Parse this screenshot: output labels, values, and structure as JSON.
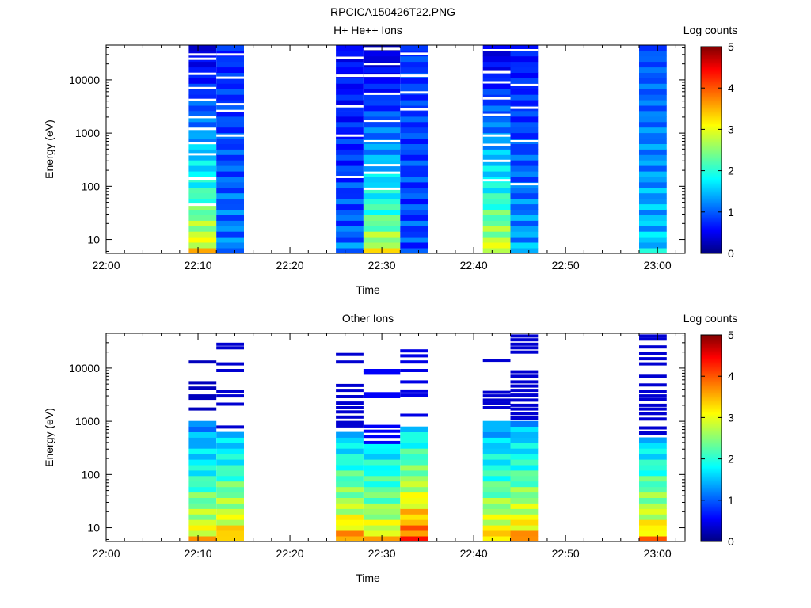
{
  "page": {
    "title": "RPCICA150426T22.PNG"
  },
  "chart_data": [
    {
      "type": "heatmap",
      "title": "H+ He++ Ions",
      "xlabel": "Time",
      "ylabel": "Energy (eV)",
      "colorbar_label": "Log counts",
      "x_ticks": [
        "22:00",
        "22:10",
        "22:20",
        "22:30",
        "22:40",
        "22:50",
        "23:00"
      ],
      "x_range": [
        "22:00",
        "23:03"
      ],
      "y_ticks": [
        10,
        100,
        1000,
        10000
      ],
      "y_scale": "log",
      "y_range": [
        5.5,
        45000
      ],
      "colorbar_ticks": [
        0,
        1,
        2,
        3,
        4,
        5
      ],
      "z_range": [
        0,
        5
      ],
      "colormap": "jet",
      "columns": [
        {
          "start": "22:09",
          "end": "22:12",
          "low_level": 3.3,
          "high_level": 0.4,
          "gaps": [
            13000,
            4200,
            1200,
            650,
            140,
            45,
            400,
            2000,
            7000,
            25000,
            30000
          ]
        },
        {
          "start": "22:12",
          "end": "22:15",
          "low_level": 1.3,
          "high_level": 0.8,
          "gaps": [
            11000,
            2600,
            900,
            3500,
            30000
          ]
        },
        {
          "start": "22:25",
          "end": "22:28",
          "low_level": 1.2,
          "high_level": 0.6,
          "gaps": [
            26000,
            3200,
            900,
            150,
            12000
          ]
        },
        {
          "start": "22:28",
          "end": "22:32",
          "low_level": 3.0,
          "high_level": 0.3,
          "gaps": [
            38000,
            12000,
            5500,
            1700,
            700,
            180,
            90,
            250,
            20000
          ]
        },
        {
          "start": "22:32",
          "end": "22:35",
          "low_level": 1.0,
          "high_level": 0.9,
          "gaps": [
            31000,
            12000,
            5800,
            2800
          ]
        },
        {
          "start": "22:41",
          "end": "22:44",
          "low_level": 3.1,
          "high_level": 0.4,
          "gaps": [
            36000,
            14000,
            4500,
            900,
            300,
            130,
            600,
            2200,
            9000
          ]
        },
        {
          "start": "22:44",
          "end": "22:47",
          "low_level": 1.5,
          "high_level": 0.7,
          "gaps": [
            36000,
            3000,
            700,
            110,
            8000
          ]
        },
        {
          "start": "22:58",
          "end": "23:01",
          "low_level": 1.7,
          "high_level": 1.0,
          "gaps": []
        }
      ]
    },
    {
      "type": "heatmap",
      "title": "Other Ions",
      "xlabel": "Time",
      "ylabel": "Energy (eV)",
      "colorbar_label": "Log counts",
      "x_ticks": [
        "22:00",
        "22:10",
        "22:20",
        "22:30",
        "22:40",
        "22:50",
        "23:00"
      ],
      "x_range": [
        "22:00",
        "23:03"
      ],
      "y_ticks": [
        10,
        100,
        1000,
        10000
      ],
      "y_scale": "log",
      "y_range": [
        5.5,
        45000
      ],
      "colorbar_ticks": [
        0,
        1,
        2,
        3,
        4,
        5
      ],
      "z_range": [
        0,
        5
      ],
      "colormap": "jet",
      "columns": [
        {
          "start": "22:09",
          "end": "22:12",
          "low_level": 3.4,
          "high_level": 0.2,
          "top": 14000,
          "dense_top": 800,
          "bands": [
            13000,
            5300,
            4200,
            3000,
            2700,
            1700
          ]
        },
        {
          "start": "22:12",
          "end": "22:15",
          "low_level": 3.6,
          "high_level": 0.3,
          "top": 28000,
          "dense_top": 550,
          "bands": [
            28000,
            24000,
            12000,
            9000,
            3600,
            3000,
            2100,
            780
          ]
        },
        {
          "start": "22:25",
          "end": "22:28",
          "low_level": 3.7,
          "high_level": 0.3,
          "top": 19000,
          "dense_top": 550,
          "bands": [
            18000,
            13000,
            4700,
            3800,
            2900,
            2200,
            1800,
            1500,
            1200,
            950,
            820
          ]
        },
        {
          "start": "22:28",
          "end": "22:32",
          "low_level": 3.3,
          "high_level": 0.5,
          "top": 9500,
          "dense_top": 320,
          "bands": [
            9000,
            8000,
            3300,
            2900,
            800,
            650,
            520,
            400
          ]
        },
        {
          "start": "22:32",
          "end": "22:35",
          "low_level": 4.2,
          "high_level": 0.4,
          "top": 22000,
          "dense_top": 700,
          "bands": [
            21000,
            17000,
            13000,
            9000,
            5500,
            3700,
            3100,
            1300
          ]
        },
        {
          "start": "22:41",
          "end": "22:44",
          "low_level": 3.5,
          "high_level": 0.3,
          "top": 14500,
          "dense_top": 800,
          "bands": [
            14000,
            3500,
            3000,
            2500,
            2200,
            1800
          ]
        },
        {
          "start": "22:44",
          "end": "22:47",
          "low_level": 3.7,
          "high_level": 0.3,
          "top": 40000,
          "dense_top": 900,
          "bands": [
            40000,
            34000,
            28000,
            24000,
            20000,
            8500,
            7000,
            5500,
            4600,
            3800,
            3100,
            2500,
            2000,
            1700,
            1400,
            1150
          ]
        },
        {
          "start": "22:58",
          "end": "23:01",
          "low_level": 3.6,
          "high_level": 0.3,
          "top": 40000,
          "dense_top": 450,
          "bands": [
            40000,
            35000,
            25000,
            19000,
            15000,
            12000,
            7000,
            4800,
            3600,
            3000,
            2600,
            2000,
            1700,
            1400,
            1100,
            750,
            600
          ]
        }
      ]
    }
  ]
}
